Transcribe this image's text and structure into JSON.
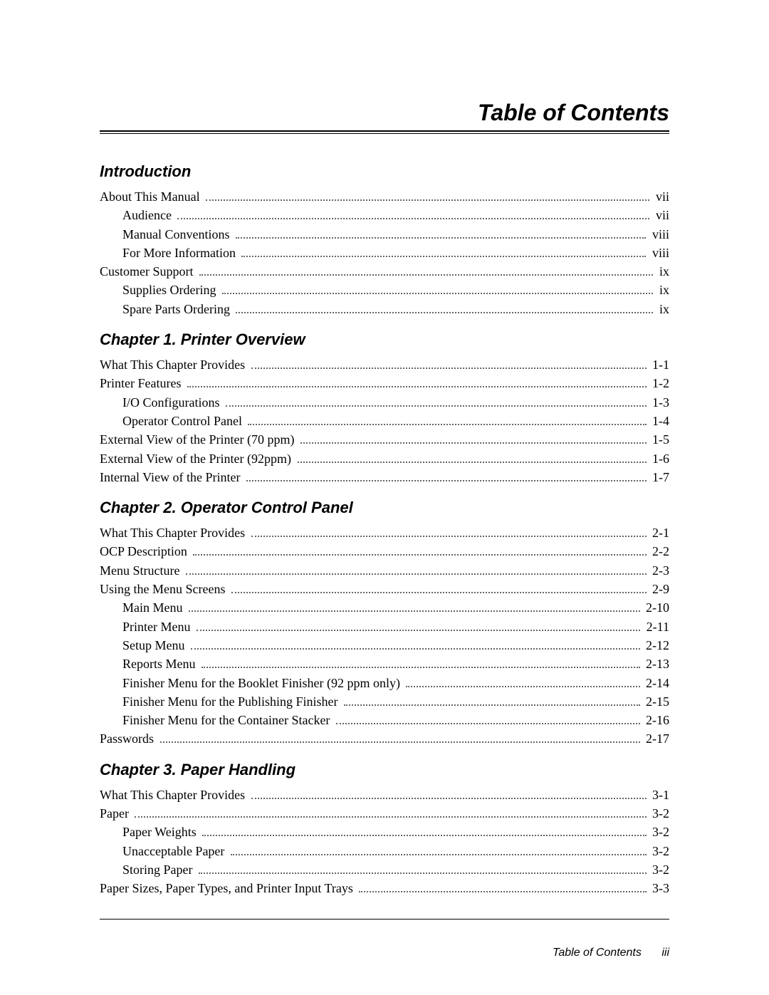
{
  "title": "Table of Contents",
  "footer": {
    "label": "Table of Contents",
    "page": "iii"
  },
  "sections": [
    {
      "heading": "Introduction",
      "entries": [
        {
          "title": "About This Manual",
          "page": "vii",
          "level": 0
        },
        {
          "title": "Audience",
          "page": "vii",
          "level": 1
        },
        {
          "title": "Manual Conventions",
          "page": "viii",
          "level": 1
        },
        {
          "title": "For More Information",
          "page": "viii",
          "level": 1
        },
        {
          "title": "Customer Support",
          "page": "ix",
          "level": 0
        },
        {
          "title": "Supplies Ordering",
          "page": "ix",
          "level": 1
        },
        {
          "title": "Spare Parts Ordering",
          "page": "ix",
          "level": 1
        }
      ]
    },
    {
      "heading": "Chapter 1. Printer Overview",
      "entries": [
        {
          "title": "What This Chapter Provides",
          "page": "1-1",
          "level": 0
        },
        {
          "title": "Printer Features",
          "page": "1-2",
          "level": 0
        },
        {
          "title": "I/O Configurations",
          "page": "1-3",
          "level": 1
        },
        {
          "title": "Operator Control Panel",
          "page": "1-4",
          "level": 1
        },
        {
          "title": "External View of the Printer (70 ppm)",
          "page": "1-5",
          "level": 0
        },
        {
          "title": "External View of the Printer (92ppm)",
          "page": "1-6",
          "level": 0
        },
        {
          "title": "Internal View of the Printer",
          "page": "1-7",
          "level": 0
        }
      ]
    },
    {
      "heading": "Chapter 2. Operator Control Panel",
      "entries": [
        {
          "title": "What This Chapter Provides",
          "page": "2-1",
          "level": 0
        },
        {
          "title": "OCP Description",
          "page": "2-2",
          "level": 0
        },
        {
          "title": "Menu Structure",
          "page": "2-3",
          "level": 0
        },
        {
          "title": "Using the Menu Screens",
          "page": "2-9",
          "level": 0
        },
        {
          "title": "Main Menu",
          "page": "2-10",
          "level": 1
        },
        {
          "title": "Printer Menu",
          "page": "2-11",
          "level": 1
        },
        {
          "title": "Setup Menu",
          "page": "2-12",
          "level": 1
        },
        {
          "title": "Reports Menu",
          "page": "2-13",
          "level": 1
        },
        {
          "title": "Finisher Menu for the Booklet Finisher (92 ppm only)",
          "page": "2-14",
          "level": 1
        },
        {
          "title": "Finisher Menu for the Publishing Finisher",
          "page": "2-15",
          "level": 1
        },
        {
          "title": "Finisher Menu for the Container Stacker",
          "page": "2-16",
          "level": 1
        },
        {
          "title": "Passwords",
          "page": "2-17",
          "level": 0
        }
      ]
    },
    {
      "heading": "Chapter 3. Paper Handling",
      "entries": [
        {
          "title": "What This Chapter Provides",
          "page": "3-1",
          "level": 0
        },
        {
          "title": "Paper",
          "page": "3-2",
          "level": 0
        },
        {
          "title": "Paper Weights",
          "page": "3-2",
          "level": 1
        },
        {
          "title": "Unacceptable Paper",
          "page": "3-2",
          "level": 1
        },
        {
          "title": "Storing Paper",
          "page": "3-2",
          "level": 1
        },
        {
          "title": "Paper Sizes, Paper Types, and Printer Input Trays",
          "page": "3-3",
          "level": 0
        }
      ]
    }
  ]
}
